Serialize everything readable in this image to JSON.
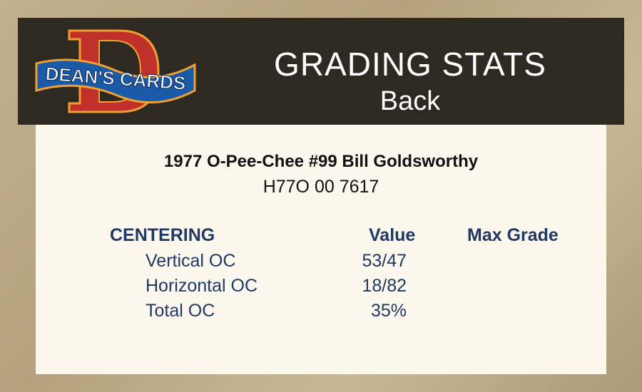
{
  "header": {
    "logo_text": "DEAN'S CARDS",
    "title": "GRADING STATS",
    "subtitle": "Back"
  },
  "card": {
    "name": "1977 O-Pee-Chee #99 Bill Goldsworthy",
    "cert": "H77O 00 7617"
  },
  "table": {
    "headers": {
      "section": "CENTERING",
      "value": "Value",
      "max_grade": "Max Grade"
    },
    "rows": [
      {
        "label": "Vertical OC",
        "value": "53/47"
      },
      {
        "label": "Horizontal OC",
        "value": "18/82"
      },
      {
        "label": "Total OC",
        "value": "35%"
      }
    ]
  },
  "colors": {
    "header_bg": "#2f2a21",
    "text_navy": "#1f3864",
    "panel_bg": "#fcf7ed"
  }
}
